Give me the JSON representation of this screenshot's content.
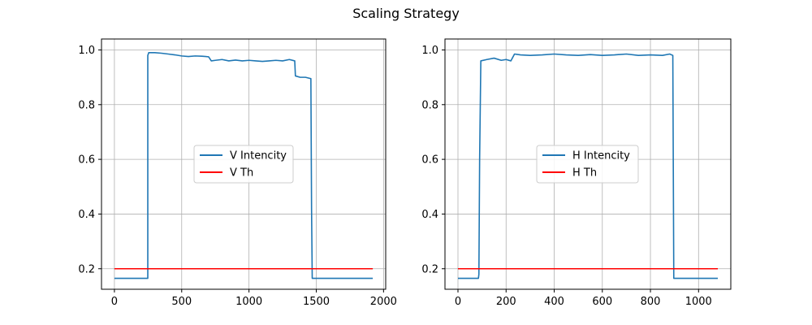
{
  "figure": {
    "title": "Scaling Strategy"
  },
  "chart_data": [
    {
      "type": "line",
      "title": "",
      "xlabel": "",
      "ylabel": "",
      "xlim": [
        -96,
        2016
      ],
      "ylim": [
        0.125,
        1.04
      ],
      "xticks": [
        0,
        500,
        1000,
        1500,
        2000
      ],
      "xtick_labels": [
        "0",
        "500",
        "1000",
        "1500",
        "2000"
      ],
      "yticks": [
        0.2,
        0.4,
        0.6,
        0.8,
        1.0
      ],
      "ytick_labels": [
        "0.2",
        "0.4",
        "0.6",
        "0.8",
        "1.0"
      ],
      "grid": true,
      "legend_position": "center",
      "series": [
        {
          "name": "V Intencity",
          "color": "#1f77b4",
          "x": [
            0,
            248,
            248,
            255,
            300,
            350,
            400,
            450,
            500,
            550,
            600,
            650,
            700,
            720,
            750,
            800,
            850,
            900,
            950,
            1000,
            1050,
            1100,
            1150,
            1200,
            1250,
            1300,
            1340,
            1345,
            1380,
            1420,
            1460,
            1465,
            1470,
            1920
          ],
          "y": [
            0.165,
            0.165,
            0.98,
            0.99,
            0.99,
            0.988,
            0.985,
            0.982,
            0.978,
            0.976,
            0.978,
            0.977,
            0.975,
            0.96,
            0.962,
            0.965,
            0.96,
            0.963,
            0.96,
            0.962,
            0.96,
            0.958,
            0.96,
            0.962,
            0.96,
            0.965,
            0.96,
            0.905,
            0.9,
            0.9,
            0.895,
            0.42,
            0.165,
            0.165
          ]
        },
        {
          "name": "V Th",
          "color": "#ff0000",
          "x": [
            0,
            1920
          ],
          "y": [
            0.2,
            0.2
          ]
        }
      ]
    },
    {
      "type": "line",
      "title": "",
      "xlabel": "",
      "ylabel": "",
      "xlim": [
        -54,
        1134
      ],
      "ylim": [
        0.125,
        1.04
      ],
      "xticks": [
        0,
        200,
        400,
        600,
        800,
        1000
      ],
      "xtick_labels": [
        "0",
        "200",
        "400",
        "600",
        "800",
        "1000"
      ],
      "yticks": [
        0.2,
        0.4,
        0.6,
        0.8,
        1.0
      ],
      "ytick_labels": [
        "0.2",
        "0.4",
        "0.6",
        "0.8",
        "1.0"
      ],
      "grid": true,
      "legend_position": "center",
      "series": [
        {
          "name": "H Intencity",
          "color": "#1f77b4",
          "x": [
            0,
            85,
            87,
            90,
            95,
            120,
            150,
            180,
            200,
            220,
            235,
            260,
            300,
            350,
            400,
            450,
            500,
            550,
            600,
            650,
            700,
            750,
            800,
            850,
            880,
            893,
            897,
            1080
          ],
          "y": [
            0.165,
            0.165,
            0.18,
            0.6,
            0.96,
            0.965,
            0.97,
            0.962,
            0.965,
            0.96,
            0.985,
            0.982,
            0.98,
            0.982,
            0.985,
            0.982,
            0.98,
            0.983,
            0.98,
            0.982,
            0.985,
            0.98,
            0.982,
            0.98,
            0.985,
            0.98,
            0.165,
            0.165
          ]
        },
        {
          "name": "H Th",
          "color": "#ff0000",
          "x": [
            0,
            1080
          ],
          "y": [
            0.2,
            0.2
          ]
        }
      ]
    }
  ]
}
